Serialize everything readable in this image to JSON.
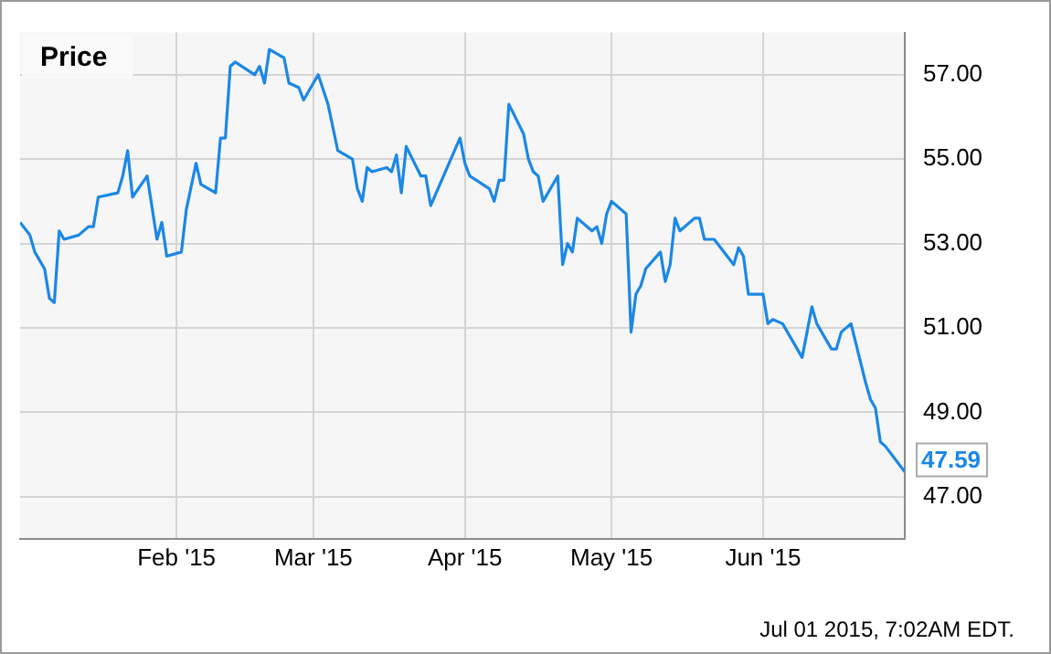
{
  "chart_data": {
    "type": "line",
    "title": "Price",
    "x": [
      "2014-12-31",
      "2015-01-02",
      "2015-01-03",
      "2015-01-05",
      "2015-01-06",
      "2015-01-07",
      "2015-01-08",
      "2015-01-09",
      "2015-01-12",
      "2015-01-14",
      "2015-01-15",
      "2015-01-16",
      "2015-01-20",
      "2015-01-21",
      "2015-01-22",
      "2015-01-23",
      "2015-01-26",
      "2015-01-28",
      "2015-01-29",
      "2015-01-30",
      "2015-02-02",
      "2015-02-03",
      "2015-02-05",
      "2015-02-06",
      "2015-02-09",
      "2015-02-10",
      "2015-02-11",
      "2015-02-12",
      "2015-02-13",
      "2015-02-17",
      "2015-02-18",
      "2015-02-19",
      "2015-02-20",
      "2015-02-23",
      "2015-02-24",
      "2015-02-26",
      "2015-02-27",
      "2015-03-02",
      "2015-03-04",
      "2015-03-06",
      "2015-03-09",
      "2015-03-10",
      "2015-03-11",
      "2015-03-12",
      "2015-03-13",
      "2015-03-16",
      "2015-03-17",
      "2015-03-18",
      "2015-03-19",
      "2015-03-20",
      "2015-03-23",
      "2015-03-24",
      "2015-03-25",
      "2015-03-31",
      "2015-04-01",
      "2015-04-02",
      "2015-04-06",
      "2015-04-07",
      "2015-04-08",
      "2015-04-09",
      "2015-04-10",
      "2015-04-13",
      "2015-04-14",
      "2015-04-15",
      "2015-04-16",
      "2015-04-17",
      "2015-04-20",
      "2015-04-21",
      "2015-04-22",
      "2015-04-23",
      "2015-04-24",
      "2015-04-27",
      "2015-04-28",
      "2015-04-29",
      "2015-04-30",
      "2015-05-01",
      "2015-05-04",
      "2015-05-05",
      "2015-05-06",
      "2015-05-07",
      "2015-05-08",
      "2015-05-11",
      "2015-05-12",
      "2015-05-13",
      "2015-05-14",
      "2015-05-15",
      "2015-05-18",
      "2015-05-19",
      "2015-05-20",
      "2015-05-21",
      "2015-05-22",
      "2015-05-26",
      "2015-05-27",
      "2015-05-28",
      "2015-05-29",
      "2015-06-01",
      "2015-06-02",
      "2015-06-03",
      "2015-06-05",
      "2015-06-09",
      "2015-06-11",
      "2015-06-12",
      "2015-06-15",
      "2015-06-16",
      "2015-06-17",
      "2015-06-19",
      "2015-06-22",
      "2015-06-23",
      "2015-06-24",
      "2015-06-25",
      "2015-06-26",
      "2015-06-30"
    ],
    "series": [
      {
        "color": "#1b87e6",
        "values": [
          53.5,
          53.2,
          52.8,
          52.4,
          51.7,
          51.6,
          53.3,
          53.1,
          53.2,
          53.4,
          53.4,
          54.1,
          54.2,
          54.6,
          55.2,
          54.1,
          54.6,
          53.1,
          53.5,
          52.7,
          52.8,
          53.8,
          54.9,
          54.4,
          54.2,
          55.5,
          55.5,
          57.2,
          57.3,
          57.0,
          57.2,
          56.8,
          57.6,
          57.4,
          56.8,
          56.7,
          56.4,
          57.0,
          56.3,
          55.2,
          55.0,
          54.3,
          54.0,
          54.8,
          54.7,
          54.8,
          54.7,
          55.1,
          54.2,
          55.3,
          54.6,
          54.6,
          53.9,
          55.5,
          54.9,
          54.6,
          54.3,
          54.0,
          54.5,
          54.5,
          56.3,
          55.6,
          55.0,
          54.7,
          54.6,
          54.0,
          54.6,
          52.5,
          53.0,
          52.8,
          53.6,
          53.3,
          53.4,
          53.0,
          53.7,
          54.0,
          53.7,
          50.9,
          51.8,
          52.0,
          52.4,
          52.8,
          52.1,
          52.5,
          53.6,
          53.3,
          53.6,
          53.6,
          53.1,
          53.1,
          53.1,
          52.5,
          52.9,
          52.7,
          51.8,
          51.8,
          51.1,
          51.2,
          51.1,
          50.3,
          51.5,
          51.1,
          50.5,
          50.5,
          50.9,
          51.1,
          49.7,
          49.3,
          49.1,
          48.3,
          48.2,
          47.59
        ],
        "value_labels": [
          null,
          null,
          null,
          null,
          null,
          null,
          null,
          null,
          null,
          null,
          null,
          null,
          null,
          null,
          null,
          null,
          null,
          null,
          null,
          null,
          null,
          null,
          null,
          null,
          null,
          null,
          null,
          null,
          null,
          null,
          null,
          null,
          null,
          null,
          null,
          null,
          null,
          null,
          null,
          null,
          null,
          null,
          null,
          null,
          null,
          null,
          null,
          null,
          null,
          null,
          null,
          null,
          null,
          null,
          null,
          null,
          null,
          null,
          null,
          null,
          null,
          null,
          null,
          null,
          null,
          null,
          null,
          null,
          null,
          null,
          null,
          null,
          null,
          null,
          null,
          null,
          null,
          null,
          null,
          null,
          null,
          null,
          null,
          null,
          null,
          null,
          null,
          null,
          null,
          null,
          null,
          null,
          null,
          null,
          null,
          null,
          null,
          null,
          null,
          null,
          null,
          null,
          null,
          null,
          null,
          null,
          null,
          null,
          null,
          null,
          null,
          "47.59"
        ]
      }
    ],
    "xlim": [
      "2014-12-31",
      "2015-06-30"
    ],
    "xticks": [
      {
        "value": "2015-02-01",
        "label": "Feb '15"
      },
      {
        "value": "2015-03-01",
        "label": "Mar '15"
      },
      {
        "value": "2015-04-01",
        "label": "Apr '15"
      },
      {
        "value": "2015-05-01",
        "label": "May '15"
      },
      {
        "value": "2015-06-01",
        "label": "Jun '15"
      }
    ],
    "ylim": [
      46,
      58
    ],
    "yticks": [
      {
        "value": 47,
        "label": "47.00"
      },
      {
        "value": 49,
        "label": "49.00"
      },
      {
        "value": 51,
        "label": "51.00"
      },
      {
        "value": 53,
        "label": "53.00"
      },
      {
        "value": 55,
        "label": "55.00"
      },
      {
        "value": 57,
        "label": "57.00"
      }
    ],
    "grid": true,
    "legend": false,
    "marker": "none",
    "line_style": "solid",
    "annotations": [
      "Jul 01 2015, 7:02AM EDT."
    ]
  }
}
